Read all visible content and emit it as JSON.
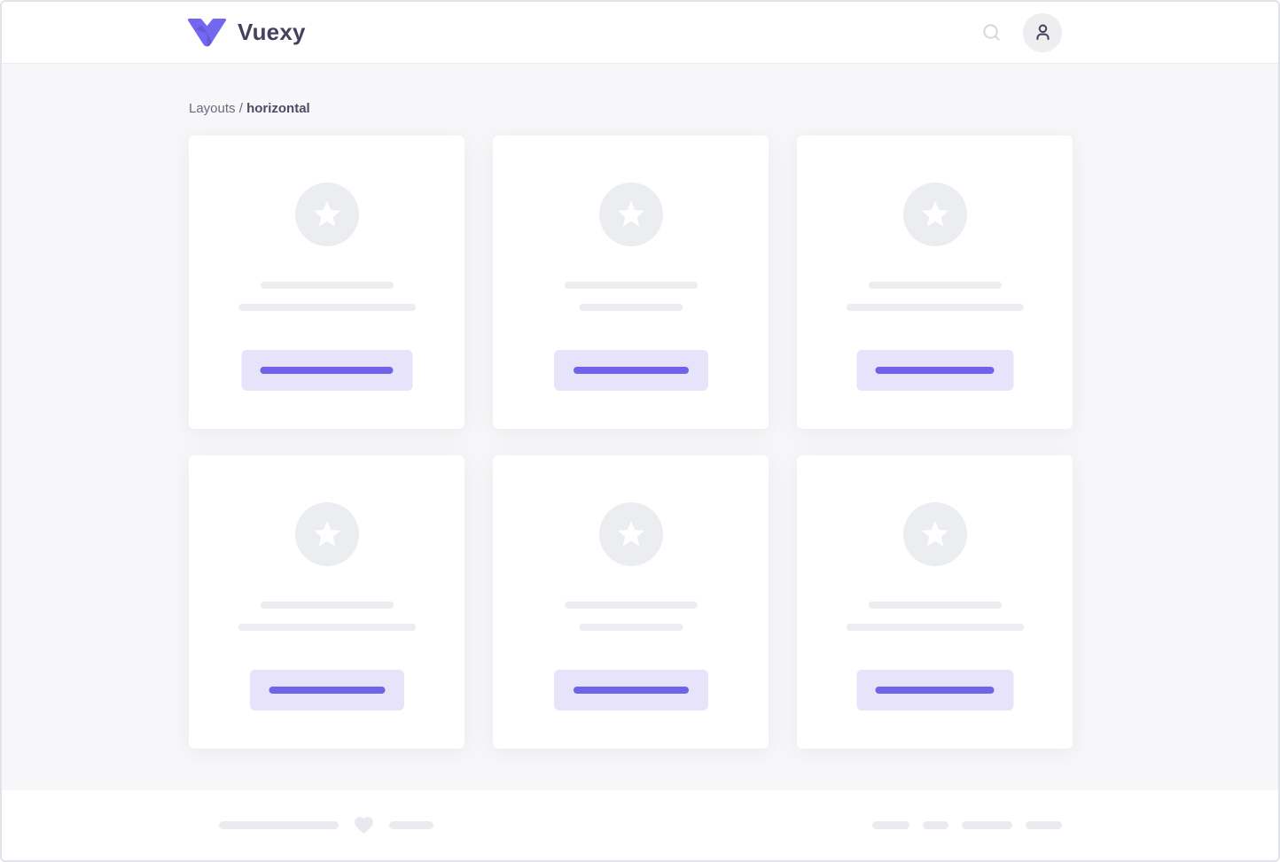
{
  "header": {
    "brand_name": "Vuexy",
    "search_icon": "magnifying-glass",
    "avatar_icon": "person"
  },
  "breadcrumb": {
    "section": "Layouts",
    "separator": "/",
    "current": "horizontal"
  },
  "main": {
    "cards": [
      {
        "icon": "star",
        "line1_width": 150,
        "line2_width": 200,
        "button_width": 193,
        "button_line_width": 150
      },
      {
        "icon": "star",
        "line1_width": 150,
        "line2_width": 117,
        "button_width": 174,
        "button_line_width": 130
      },
      {
        "icon": "star",
        "line1_width": 150,
        "line2_width": 200,
        "button_width": 177,
        "button_line_width": 134
      },
      {
        "icon": "star",
        "line1_width": 150,
        "line2_width": 200,
        "button_width": 174,
        "button_line_width": 131
      },
      {
        "icon": "star",
        "line1_width": 150,
        "line2_width": 117,
        "button_width": 174,
        "button_line_width": 130
      },
      {
        "icon": "star",
        "line1_width": 150,
        "line2_width": 200,
        "button_width": 177,
        "button_line_width": 134
      }
    ]
  },
  "footer": {
    "left_line_widths": [
      135,
      50
    ],
    "heart_icon": "heart",
    "right_pill_widths": [
      42,
      29,
      57,
      41
    ]
  },
  "colors": {
    "primary": "#7367f0",
    "primary_dark_fold": "#5a50c8",
    "primary_light": "#e6e3fb",
    "button_line": "#6f63e8",
    "placeholder_gray": "#ebedf0",
    "footer_pill_gray": "#e9ebef",
    "content_background": "#f7f7f9",
    "surface": "#ffffff",
    "brand_text": "#44405e",
    "breadcrumb_text": "#6e6a7d",
    "breadcrumb_current": "#4e4a66"
  }
}
